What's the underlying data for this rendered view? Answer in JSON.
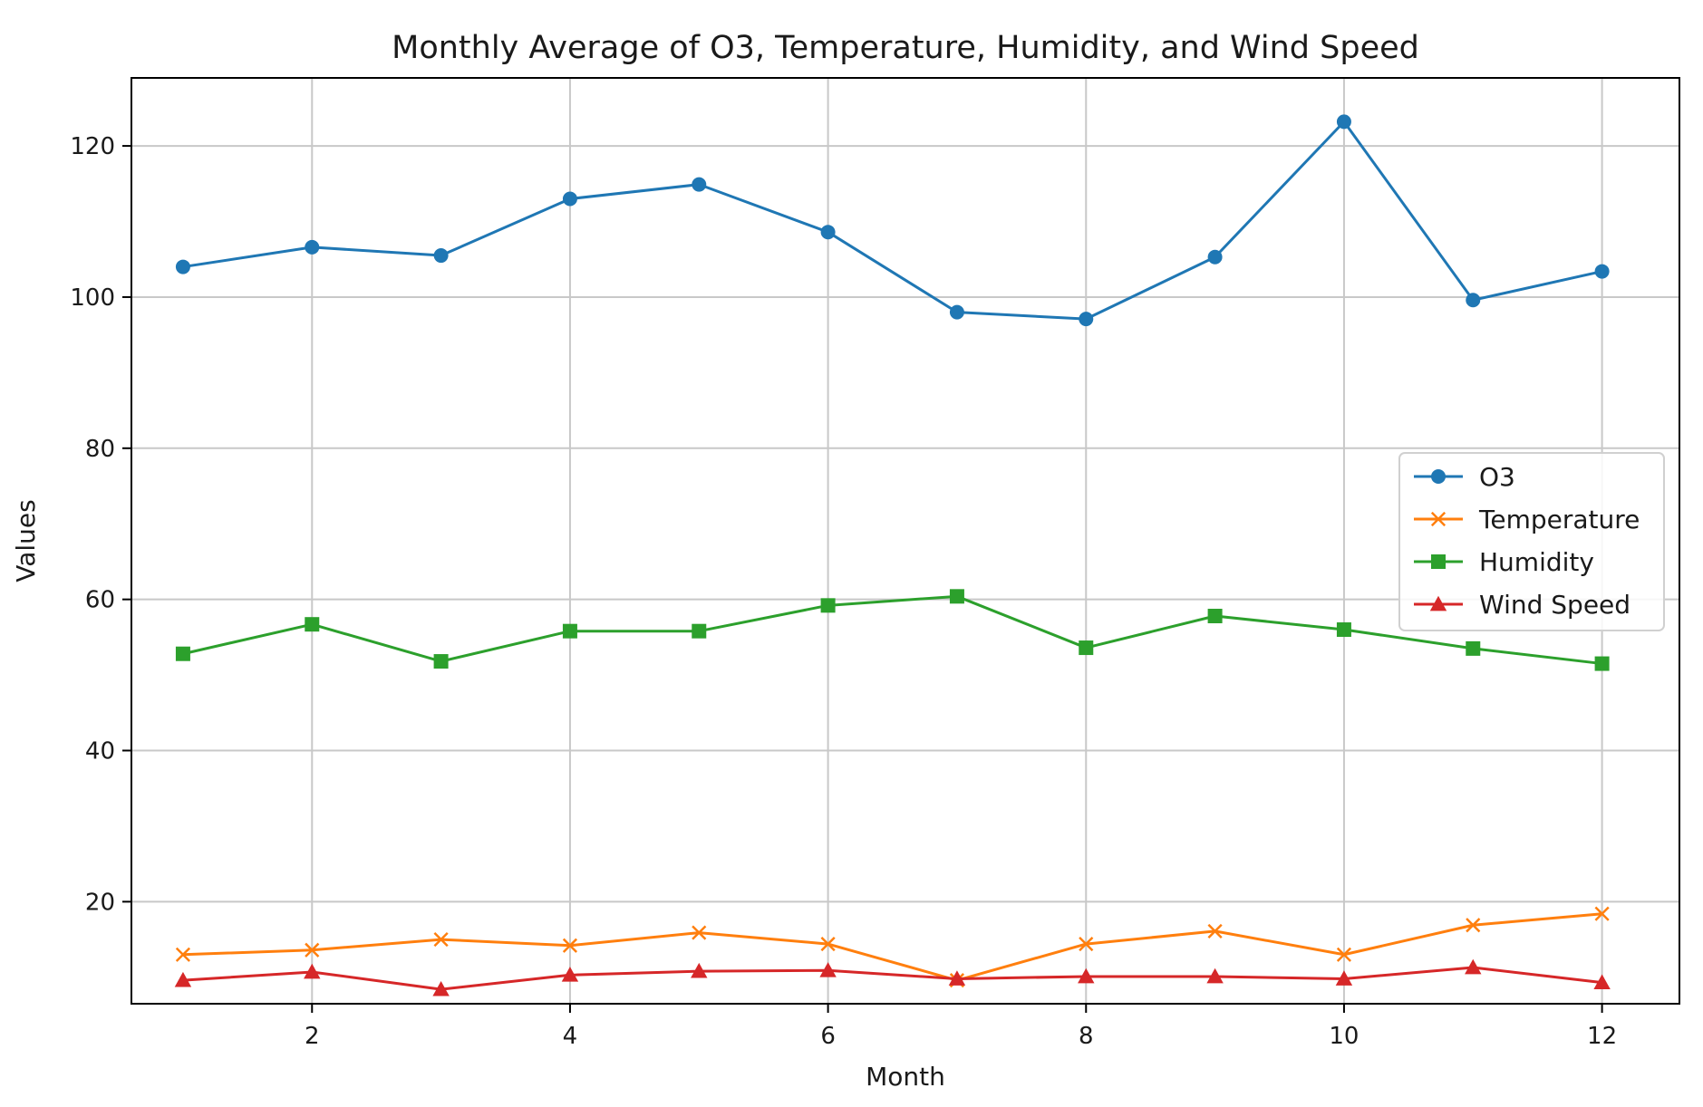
{
  "chart_data": {
    "type": "line",
    "title": "Monthly Average of O3, Temperature, Humidity, and Wind Speed",
    "xlabel": "Month",
    "ylabel": "Values",
    "x": [
      1,
      2,
      3,
      4,
      5,
      6,
      7,
      8,
      9,
      10,
      11,
      12
    ],
    "xlim": [
      0.6,
      12.6
    ],
    "ylim": [
      6.5,
      129
    ],
    "xticks": [
      2,
      4,
      6,
      8,
      10,
      12
    ],
    "yticks": [
      20,
      40,
      60,
      80,
      100,
      120
    ],
    "xtick_labels": [
      "2",
      "4",
      "6",
      "8",
      "10",
      "12"
    ],
    "ytick_labels": [
      "20",
      "40",
      "60",
      "80",
      "100",
      "120"
    ],
    "grid": true,
    "legend_position": "center-right",
    "series": [
      {
        "name": "O3",
        "color": "#1f77b4",
        "marker": "circle",
        "values": [
          104.0,
          106.6,
          105.5,
          113.0,
          114.9,
          108.6,
          98.0,
          97.1,
          105.3,
          123.2,
          99.6,
          103.4
        ]
      },
      {
        "name": "Temperature",
        "color": "#ff7f0e",
        "marker": "x",
        "values": [
          13.0,
          13.6,
          15.0,
          14.2,
          15.9,
          14.4,
          9.6,
          14.4,
          16.1,
          13.0,
          16.9,
          18.4
        ]
      },
      {
        "name": "Humidity",
        "color": "#2ca02c",
        "marker": "square",
        "values": [
          52.8,
          56.7,
          51.8,
          55.8,
          55.8,
          59.2,
          60.4,
          53.6,
          57.8,
          56.0,
          53.5,
          51.5
        ]
      },
      {
        "name": "Wind Speed",
        "color": "#d62728",
        "marker": "triangle",
        "values": [
          9.6,
          10.7,
          8.4,
          10.3,
          10.8,
          10.9,
          9.8,
          10.1,
          10.1,
          9.8,
          11.3,
          9.3
        ]
      }
    ]
  }
}
